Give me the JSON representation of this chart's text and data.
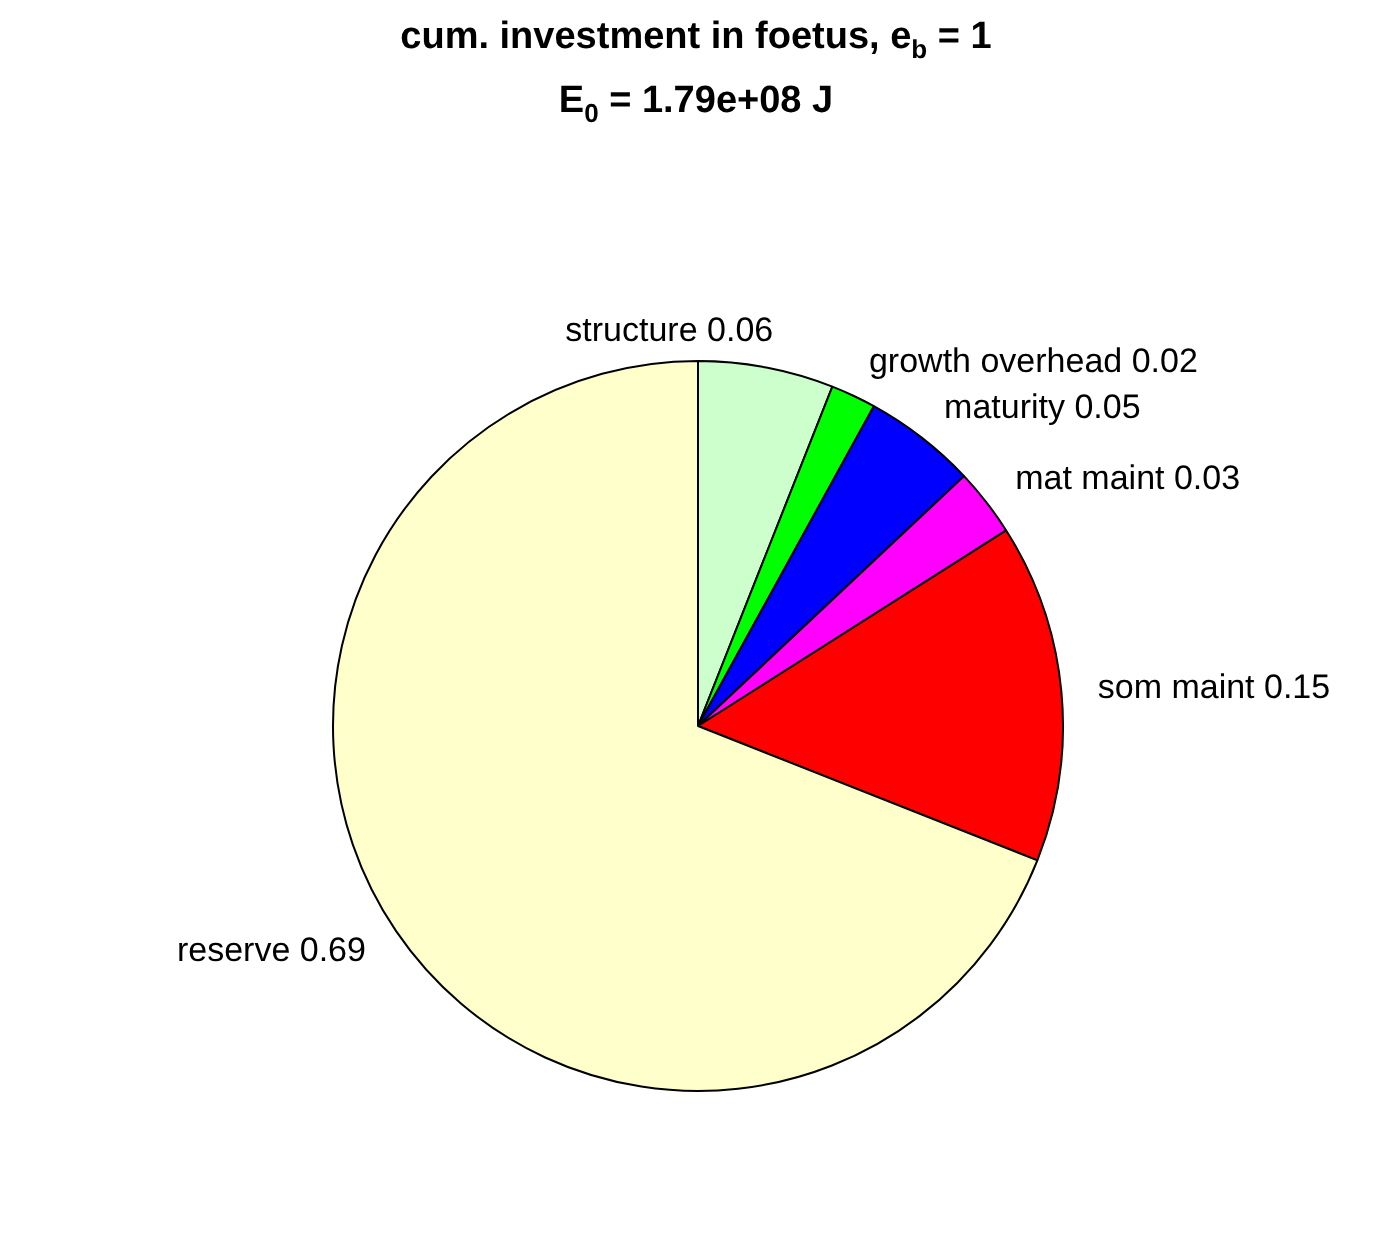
{
  "chart_data": {
    "type": "pie",
    "title": "cum. investment in foetus, e$_{b}$ = 1",
    "subtitle": "E$_{0}$ = 1.79e+08 J",
    "categories": [
      "structure 0.06",
      "growth overhead 0.02",
      "maturity 0.05",
      "mat maint 0.03",
      "som maint 0.15",
      "reserve 0.69"
    ],
    "values": [
      0.06,
      0.02,
      0.05,
      0.03,
      0.15,
      0.69
    ],
    "colors": [
      "#ccffcc",
      "#00ff00",
      "#0000ff",
      "#ff00ff",
      "#ff0000",
      "#ffffcc"
    ],
    "legend": false
  }
}
